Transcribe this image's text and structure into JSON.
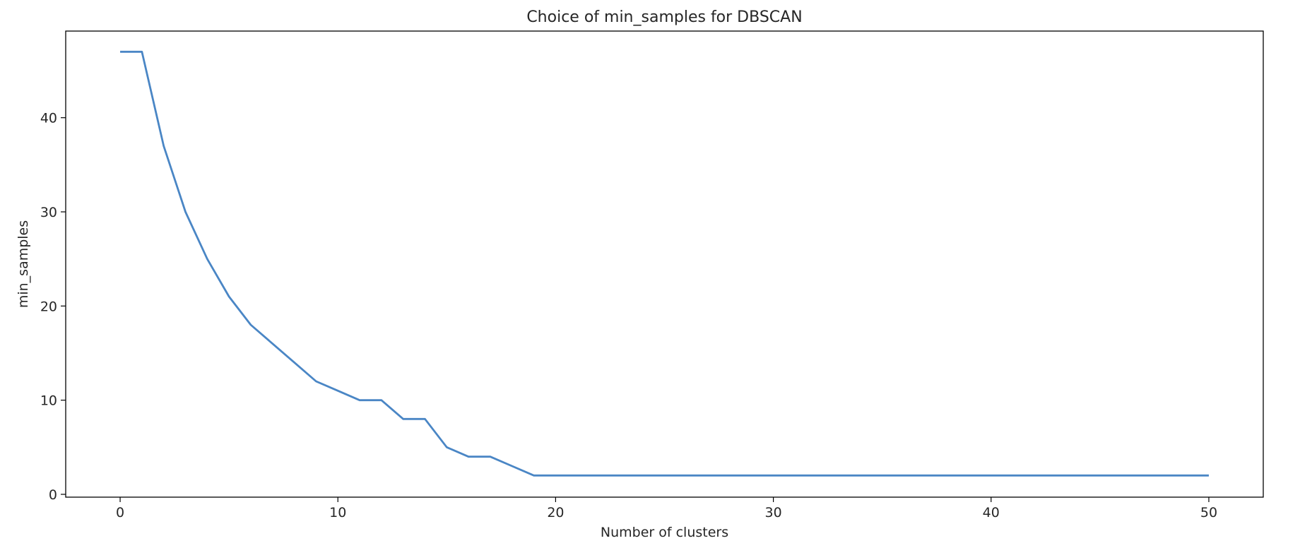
{
  "chart_data": {
    "type": "line",
    "title": "Choice of min_samples for DBSCAN",
    "xlabel": "Number of clusters",
    "ylabel": "min_samples",
    "xlim": [
      -2.5,
      52.5
    ],
    "ylim": [
      -0.3,
      49.2
    ],
    "xticks": [
      0,
      10,
      20,
      30,
      40,
      50
    ],
    "yticks": [
      0,
      10,
      20,
      30,
      40
    ],
    "grid": false,
    "series": [
      {
        "color": "#4a86c5",
        "x": [
          0,
          1,
          2,
          3,
          4,
          5,
          6,
          7,
          8,
          9,
          10,
          11,
          12,
          13,
          14,
          15,
          16,
          17,
          18,
          19,
          20,
          21,
          22,
          23,
          24,
          25,
          26,
          27,
          28,
          29,
          30,
          31,
          32,
          33,
          34,
          35,
          36,
          37,
          38,
          39,
          40,
          41,
          42,
          43,
          44,
          45,
          46,
          47,
          48,
          49,
          50
        ],
        "y": [
          47,
          47,
          37,
          30,
          25,
          21,
          18,
          16,
          14,
          12,
          11,
          10,
          10,
          8,
          8,
          5,
          4,
          4,
          3,
          2,
          2,
          2,
          2,
          2,
          2,
          2,
          2,
          2,
          2,
          2,
          2,
          2,
          2,
          2,
          2,
          2,
          2,
          2,
          2,
          2,
          2,
          2,
          2,
          2,
          2,
          2,
          2,
          2,
          2,
          2,
          2
        ]
      }
    ]
  }
}
